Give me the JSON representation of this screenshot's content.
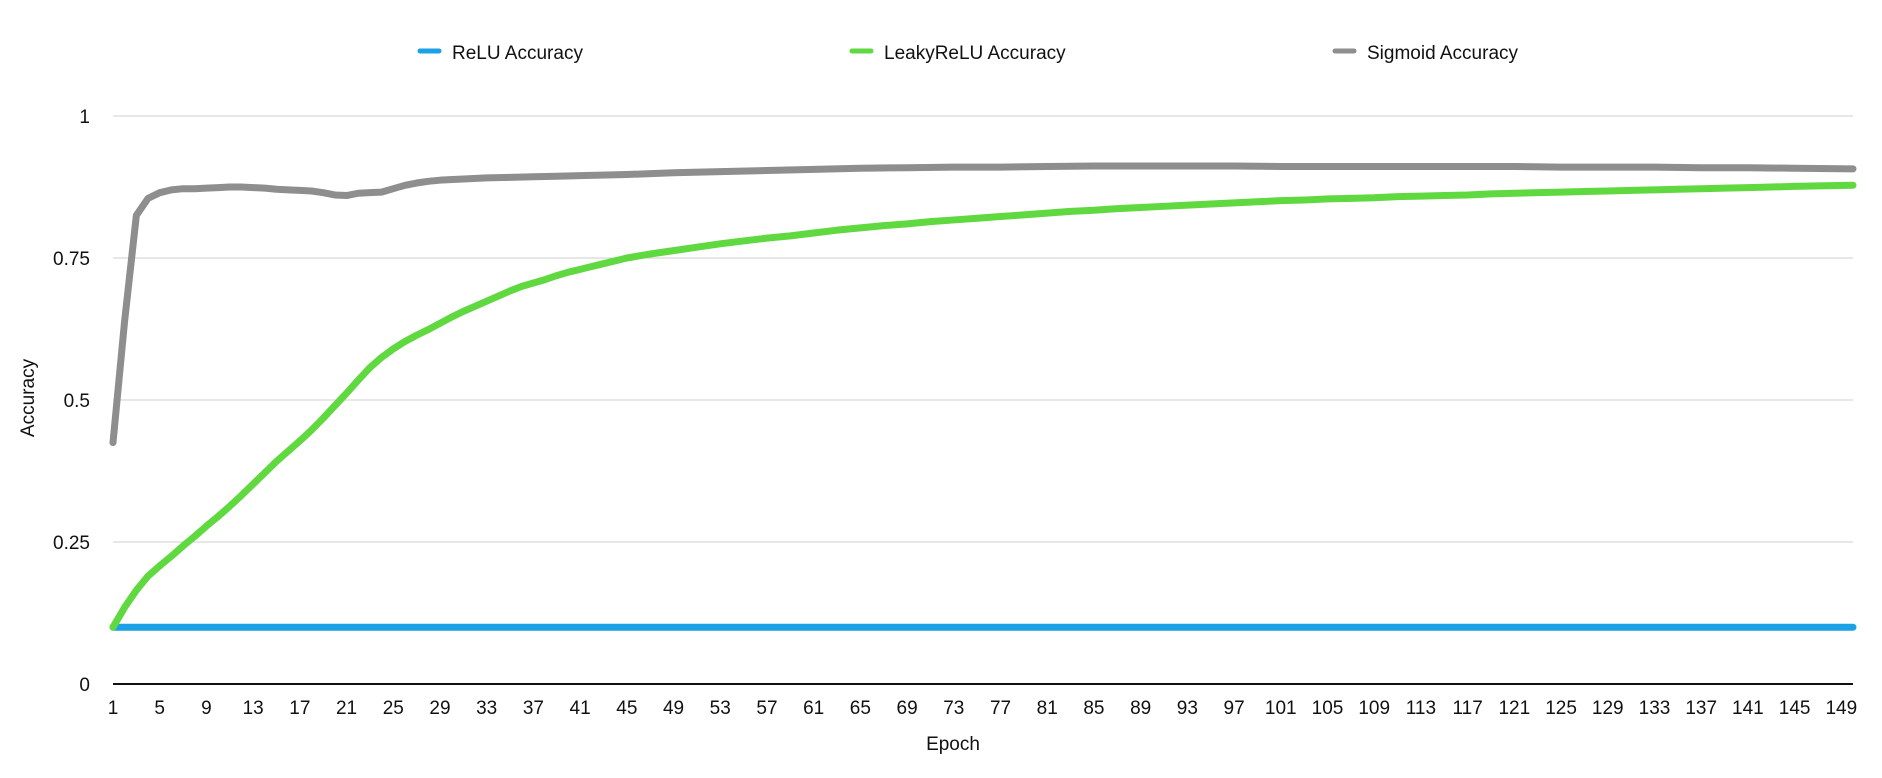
{
  "chart_data": {
    "type": "line",
    "title": "",
    "xlabel": "Epoch",
    "ylabel": "Accuracy",
    "ylim": [
      0,
      1
    ],
    "xlim": [
      1,
      150
    ],
    "grid": true,
    "legend_placement": "top-center",
    "yticks": [
      0,
      0.25,
      0.5,
      0.75,
      1
    ],
    "ytick_labels": [
      "0",
      "0.25",
      "0.5",
      "0.75",
      "1"
    ],
    "xtick_labels": [
      "1",
      "5",
      "9",
      "13",
      "17",
      "21",
      "25",
      "29",
      "33",
      "37",
      "41",
      "45",
      "49",
      "53",
      "57",
      "61",
      "65",
      "69",
      "73",
      "77",
      "81",
      "85",
      "89",
      "93",
      "97",
      "101",
      "105",
      "109",
      "113",
      "117",
      "121",
      "125",
      "129",
      "133",
      "137",
      "141",
      "145",
      "149"
    ],
    "series": [
      {
        "name": "ReLU Accuracy",
        "color": "#1ba1e6",
        "points": [
          [
            1,
            0.1
          ],
          [
            150,
            0.1
          ]
        ]
      },
      {
        "name": "LeakyReLU Accuracy",
        "color": "#5fd93f",
        "points": [
          [
            1,
            0.1
          ],
          [
            2,
            0.135
          ],
          [
            3,
            0.165
          ],
          [
            4,
            0.19
          ],
          [
            5,
            0.208
          ],
          [
            6,
            0.225
          ],
          [
            7,
            0.243
          ],
          [
            8,
            0.26
          ],
          [
            9,
            0.278
          ],
          [
            10,
            0.295
          ],
          [
            11,
            0.313
          ],
          [
            12,
            0.332
          ],
          [
            13,
            0.352
          ],
          [
            14,
            0.372
          ],
          [
            15,
            0.392
          ],
          [
            16,
            0.41
          ],
          [
            17,
            0.428
          ],
          [
            18,
            0.447
          ],
          [
            19,
            0.468
          ],
          [
            20,
            0.49
          ],
          [
            21,
            0.512
          ],
          [
            22,
            0.535
          ],
          [
            23,
            0.557
          ],
          [
            24,
            0.575
          ],
          [
            25,
            0.59
          ],
          [
            26,
            0.603
          ],
          [
            27,
            0.614
          ],
          [
            28,
            0.624
          ],
          [
            29,
            0.635
          ],
          [
            30,
            0.646
          ],
          [
            31,
            0.656
          ],
          [
            32,
            0.665
          ],
          [
            33,
            0.674
          ],
          [
            34,
            0.683
          ],
          [
            35,
            0.692
          ],
          [
            36,
            0.7
          ],
          [
            37,
            0.706
          ],
          [
            38,
            0.712
          ],
          [
            39,
            0.719
          ],
          [
            40,
            0.725
          ],
          [
            41,
            0.73
          ],
          [
            42,
            0.735
          ],
          [
            43,
            0.74
          ],
          [
            44,
            0.745
          ],
          [
            45,
            0.75
          ],
          [
            47,
            0.757
          ],
          [
            49,
            0.763
          ],
          [
            51,
            0.769
          ],
          [
            53,
            0.775
          ],
          [
            55,
            0.78
          ],
          [
            57,
            0.785
          ],
          [
            59,
            0.789
          ],
          [
            61,
            0.794
          ],
          [
            63,
            0.799
          ],
          [
            65,
            0.803
          ],
          [
            67,
            0.807
          ],
          [
            69,
            0.81
          ],
          [
            71,
            0.814
          ],
          [
            73,
            0.817
          ],
          [
            75,
            0.82
          ],
          [
            77,
            0.823
          ],
          [
            79,
            0.826
          ],
          [
            81,
            0.829
          ],
          [
            83,
            0.832
          ],
          [
            85,
            0.834
          ],
          [
            87,
            0.837
          ],
          [
            89,
            0.839
          ],
          [
            91,
            0.841
          ],
          [
            93,
            0.843
          ],
          [
            95,
            0.845
          ],
          [
            97,
            0.847
          ],
          [
            99,
            0.849
          ],
          [
            101,
            0.851
          ],
          [
            103,
            0.852
          ],
          [
            105,
            0.854
          ],
          [
            107,
            0.855
          ],
          [
            109,
            0.856
          ],
          [
            111,
            0.858
          ],
          [
            113,
            0.859
          ],
          [
            115,
            0.86
          ],
          [
            117,
            0.861
          ],
          [
            119,
            0.863
          ],
          [
            121,
            0.864
          ],
          [
            123,
            0.865
          ],
          [
            125,
            0.866
          ],
          [
            127,
            0.867
          ],
          [
            129,
            0.868
          ],
          [
            131,
            0.869
          ],
          [
            133,
            0.87
          ],
          [
            135,
            0.871
          ],
          [
            137,
            0.872
          ],
          [
            139,
            0.873
          ],
          [
            141,
            0.874
          ],
          [
            143,
            0.875
          ],
          [
            145,
            0.876
          ],
          [
            147,
            0.877
          ],
          [
            150,
            0.878
          ]
        ]
      },
      {
        "name": "Sigmoid Accuracy",
        "color": "#8e8e8e",
        "points": [
          [
            1,
            0.425
          ],
          [
            2,
            0.64
          ],
          [
            3,
            0.825
          ],
          [
            4,
            0.855
          ],
          [
            5,
            0.865
          ],
          [
            6,
            0.87
          ],
          [
            7,
            0.872
          ],
          [
            8,
            0.872
          ],
          [
            9,
            0.873
          ],
          [
            10,
            0.874
          ],
          [
            11,
            0.875
          ],
          [
            12,
            0.875
          ],
          [
            13,
            0.874
          ],
          [
            14,
            0.873
          ],
          [
            15,
            0.871
          ],
          [
            16,
            0.87
          ],
          [
            17,
            0.869
          ],
          [
            18,
            0.868
          ],
          [
            19,
            0.865
          ],
          [
            20,
            0.861
          ],
          [
            21,
            0.86
          ],
          [
            22,
            0.864
          ],
          [
            23,
            0.865
          ],
          [
            24,
            0.866
          ],
          [
            25,
            0.872
          ],
          [
            26,
            0.878
          ],
          [
            27,
            0.882
          ],
          [
            28,
            0.885
          ],
          [
            29,
            0.887
          ],
          [
            31,
            0.889
          ],
          [
            33,
            0.891
          ],
          [
            35,
            0.892
          ],
          [
            37,
            0.893
          ],
          [
            39,
            0.894
          ],
          [
            41,
            0.895
          ],
          [
            45,
            0.897
          ],
          [
            49,
            0.9
          ],
          [
            53,
            0.902
          ],
          [
            57,
            0.904
          ],
          [
            61,
            0.906
          ],
          [
            65,
            0.908
          ],
          [
            69,
            0.909
          ],
          [
            73,
            0.91
          ],
          [
            77,
            0.91
          ],
          [
            81,
            0.911
          ],
          [
            85,
            0.912
          ],
          [
            89,
            0.912
          ],
          [
            93,
            0.912
          ],
          [
            97,
            0.912
          ],
          [
            101,
            0.911
          ],
          [
            105,
            0.911
          ],
          [
            109,
            0.911
          ],
          [
            113,
            0.911
          ],
          [
            117,
            0.911
          ],
          [
            121,
            0.911
          ],
          [
            125,
            0.91
          ],
          [
            129,
            0.91
          ],
          [
            133,
            0.91
          ],
          [
            137,
            0.909
          ],
          [
            141,
            0.909
          ],
          [
            145,
            0.908
          ],
          [
            150,
            0.907
          ]
        ]
      }
    ]
  }
}
